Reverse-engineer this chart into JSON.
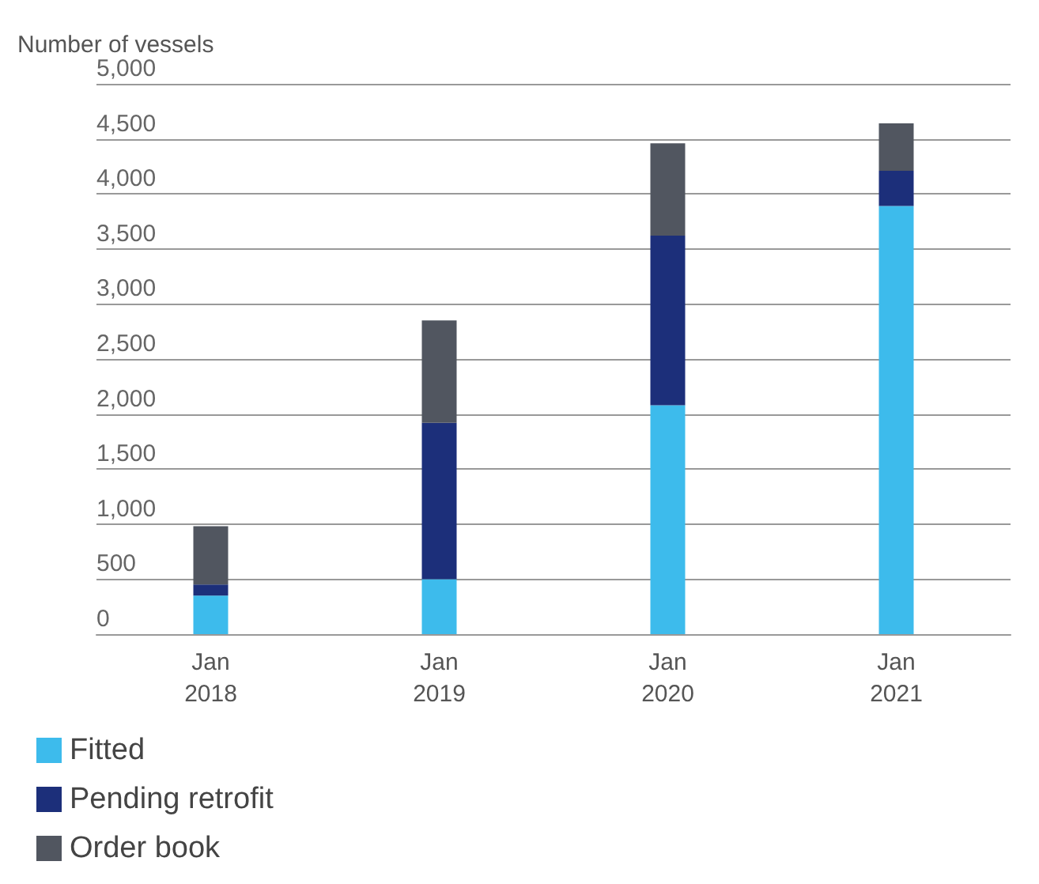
{
  "chart_data": {
    "type": "bar",
    "ylabel": "Number of vessels",
    "categories": [
      "Jan\n2018",
      "Jan\n2019",
      "Jan\n2020",
      "Jan\n2021"
    ],
    "stacked": true,
    "series": [
      {
        "name": "Fitted",
        "color": "#3dbbec",
        "values": [
          350,
          500,
          2080,
          3890
        ]
      },
      {
        "name": "Pending retrofit",
        "color": "#1c2f7a",
        "values": [
          100,
          1420,
          1540,
          320
        ]
      },
      {
        "name": "Order book",
        "color": "#515660",
        "values": [
          530,
          930,
          840,
          430
        ]
      }
    ],
    "ylim": [
      0,
      5000
    ],
    "yticks": [
      0,
      {
        "value": 500,
        "label": "500"
      },
      {
        "value": 1000,
        "label": "1,000"
      },
      {
        "value": 1500,
        "label": "1,500"
      },
      {
        "value": 2000,
        "label": "2,000"
      },
      {
        "value": 2500,
        "label": "2,500"
      },
      {
        "value": 3000,
        "label": "3,000"
      },
      {
        "value": 3500,
        "label": "3,500"
      },
      {
        "value": 4000,
        "label": "4,000"
      },
      {
        "value": 4500,
        "label": "4,500"
      },
      {
        "value": 5000,
        "label": "5,000"
      }
    ],
    "grid": "y",
    "legend": "bottom"
  }
}
